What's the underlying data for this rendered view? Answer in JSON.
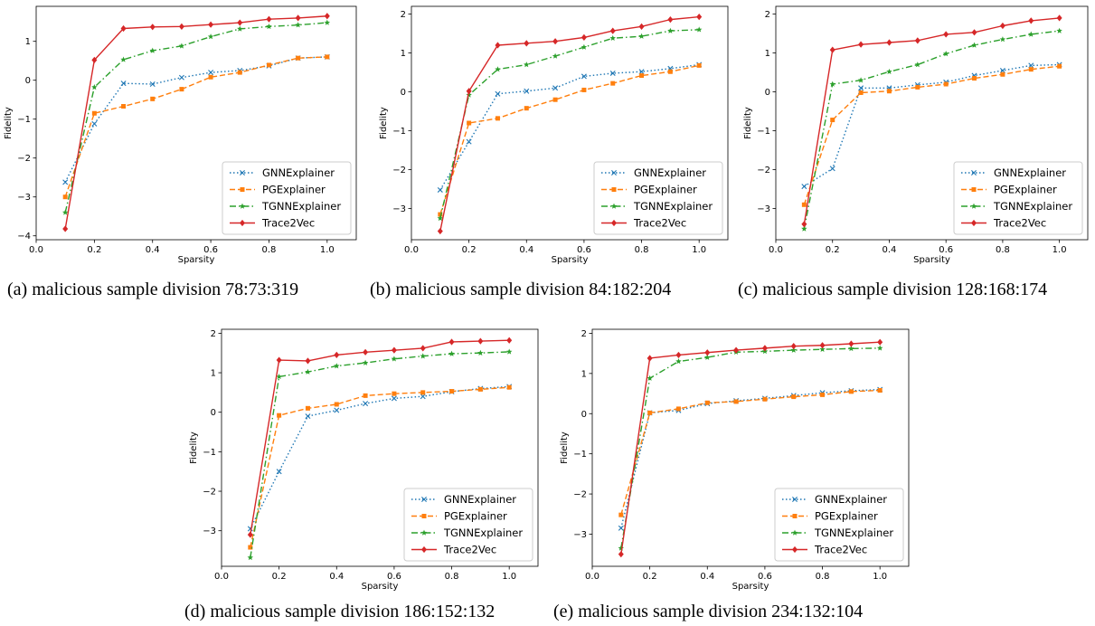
{
  "figure": {
    "colors": {
      "gnn": "#1f77b4",
      "pg": "#ff7f0e",
      "tgnn": "#2ca02c",
      "trace": "#d62728",
      "legend_border": "#cccccc"
    },
    "captions": [
      "(a) malicious sample division 78:73:319",
      "(b) malicious sample division 84:182:204",
      "(c) malicious sample division 128:168:174",
      "(d) malicious sample division 186:152:132",
      "(e) malicious sample division 234:132:104"
    ]
  },
  "chart_data": [
    {
      "type": "line",
      "xlabel": "Sparsity",
      "ylabel": "Fidelity",
      "xlim": [
        0.0,
        1.1
      ],
      "ylim": [
        -4.1,
        1.9
      ],
      "xticks": [
        "0.0",
        "0.2",
        "0.4",
        "0.6",
        "0.8",
        "1.0"
      ],
      "yticks": [
        "-4",
        "-3",
        "-2",
        "-1",
        "0",
        "1"
      ],
      "legend": "lower-right",
      "x": [
        0.1,
        0.2,
        0.3,
        0.4,
        0.5,
        0.6,
        0.7,
        0.8,
        0.9,
        1.0
      ],
      "series": [
        {
          "name": "GNNExplainer",
          "style": "dotted",
          "marker": "x",
          "values": [
            -2.62,
            -1.12,
            -0.08,
            -0.1,
            0.07,
            0.2,
            0.25,
            0.37,
            0.57,
            0.6
          ]
        },
        {
          "name": "PGExplainer",
          "style": "dashed",
          "marker": "square",
          "values": [
            -3.0,
            -0.85,
            -0.67,
            -0.48,
            -0.23,
            0.08,
            0.2,
            0.39,
            0.57,
            0.6
          ]
        },
        {
          "name": "TGNNExplainer",
          "style": "dashdot",
          "marker": "star",
          "values": [
            -3.4,
            -0.18,
            0.53,
            0.76,
            0.88,
            1.12,
            1.32,
            1.38,
            1.42,
            1.48
          ]
        },
        {
          "name": "Trace2Vec",
          "style": "solid",
          "marker": "diamond",
          "values": [
            -3.82,
            0.52,
            1.33,
            1.37,
            1.38,
            1.43,
            1.48,
            1.57,
            1.6,
            1.65
          ]
        }
      ]
    },
    {
      "type": "line",
      "xlabel": "Sparsity",
      "ylabel": "Fidelity",
      "xlim": [
        0.0,
        1.1
      ],
      "ylim": [
        -3.8,
        2.2
      ],
      "xticks": [
        "0.0",
        "0.2",
        "0.4",
        "0.6",
        "0.8",
        "1.0"
      ],
      "yticks": [
        "-3",
        "-2",
        "-1",
        "0",
        "1",
        "2"
      ],
      "legend": "lower-right",
      "x": [
        0.1,
        0.2,
        0.3,
        0.4,
        0.5,
        0.6,
        0.7,
        0.8,
        0.9,
        1.0
      ],
      "series": [
        {
          "name": "GNNExplainer",
          "style": "dotted",
          "marker": "x",
          "values": [
            -2.52,
            -1.28,
            -0.05,
            0.02,
            0.1,
            0.4,
            0.48,
            0.52,
            0.6,
            0.7
          ]
        },
        {
          "name": "PGExplainer",
          "style": "dashed",
          "marker": "square",
          "values": [
            -3.15,
            -0.8,
            -0.68,
            -0.42,
            -0.2,
            0.05,
            0.22,
            0.42,
            0.52,
            0.68
          ]
        },
        {
          "name": "TGNNExplainer",
          "style": "dashdot",
          "marker": "star",
          "values": [
            -3.25,
            -0.08,
            0.58,
            0.7,
            0.92,
            1.15,
            1.38,
            1.43,
            1.57,
            1.6
          ]
        },
        {
          "name": "Trace2Vec",
          "style": "solid",
          "marker": "diamond",
          "values": [
            -3.58,
            0.02,
            1.2,
            1.25,
            1.3,
            1.4,
            1.57,
            1.68,
            1.86,
            1.93
          ]
        }
      ]
    },
    {
      "type": "line",
      "xlabel": "Sparsity",
      "ylabel": "Fidelity",
      "xlim": [
        0.0,
        1.1
      ],
      "ylim": [
        -3.8,
        2.2
      ],
      "xticks": [
        "0.0",
        "0.2",
        "0.4",
        "0.6",
        "0.8",
        "1.0"
      ],
      "yticks": [
        "-3",
        "-2",
        "-1",
        "0",
        "1",
        "2"
      ],
      "legend": "lower-right",
      "x": [
        0.1,
        0.2,
        0.3,
        0.4,
        0.5,
        0.6,
        0.7,
        0.8,
        0.9,
        1.0
      ],
      "series": [
        {
          "name": "GNNExplainer",
          "style": "dotted",
          "marker": "x",
          "values": [
            -2.43,
            -1.97,
            0.1,
            0.1,
            0.18,
            0.25,
            0.42,
            0.55,
            0.68,
            0.7
          ]
        },
        {
          "name": "PGExplainer",
          "style": "dashed",
          "marker": "square",
          "values": [
            -2.9,
            -0.72,
            -0.02,
            0.02,
            0.12,
            0.2,
            0.35,
            0.45,
            0.58,
            0.66
          ]
        },
        {
          "name": "TGNNExplainer",
          "style": "dashdot",
          "marker": "star",
          "values": [
            -3.52,
            0.2,
            0.3,
            0.52,
            0.7,
            0.98,
            1.2,
            1.35,
            1.48,
            1.57
          ]
        },
        {
          "name": "Trace2Vec",
          "style": "solid",
          "marker": "diamond",
          "values": [
            -3.4,
            1.08,
            1.22,
            1.27,
            1.32,
            1.48,
            1.53,
            1.7,
            1.83,
            1.9
          ]
        }
      ]
    },
    {
      "type": "line",
      "xlabel": "Sparsity",
      "ylabel": "Fidelity",
      "xlim": [
        0.0,
        1.1
      ],
      "ylim": [
        -3.9,
        2.1
      ],
      "xticks": [
        "0.0",
        "0.2",
        "0.4",
        "0.6",
        "0.8",
        "1.0"
      ],
      "yticks": [
        "-3",
        "-2",
        "-1",
        "0",
        "1",
        "2"
      ],
      "legend": "lower-right",
      "x": [
        0.1,
        0.2,
        0.3,
        0.4,
        0.5,
        0.6,
        0.7,
        0.8,
        0.9,
        1.0
      ],
      "series": [
        {
          "name": "GNNExplainer",
          "style": "dotted",
          "marker": "x",
          "values": [
            -2.95,
            -1.5,
            -0.1,
            0.05,
            0.22,
            0.35,
            0.4,
            0.52,
            0.6,
            0.65
          ]
        },
        {
          "name": "PGExplainer",
          "style": "dashed",
          "marker": "square",
          "values": [
            -3.42,
            -0.08,
            0.1,
            0.2,
            0.42,
            0.47,
            0.5,
            0.53,
            0.58,
            0.63
          ]
        },
        {
          "name": "TGNNExplainer",
          "style": "dashdot",
          "marker": "star",
          "values": [
            -3.68,
            0.9,
            1.02,
            1.17,
            1.25,
            1.35,
            1.42,
            1.48,
            1.5,
            1.53
          ]
        },
        {
          "name": "Trace2Vec",
          "style": "solid",
          "marker": "diamond",
          "values": [
            -3.1,
            1.32,
            1.3,
            1.45,
            1.52,
            1.57,
            1.62,
            1.78,
            1.8,
            1.82
          ]
        }
      ]
    },
    {
      "type": "line",
      "xlabel": "Sparsity",
      "ylabel": "Fidelity",
      "xlim": [
        0.0,
        1.1
      ],
      "ylim": [
        -3.8,
        2.1
      ],
      "xticks": [
        "0.0",
        "0.2",
        "0.4",
        "0.6",
        "0.8",
        "1.0"
      ],
      "yticks": [
        "-3",
        "-2",
        "-1",
        "0",
        "1",
        "2"
      ],
      "legend": "lower-right",
      "x": [
        0.1,
        0.2,
        0.3,
        0.4,
        0.5,
        0.6,
        0.7,
        0.8,
        0.9,
        1.0
      ],
      "series": [
        {
          "name": "GNNExplainer",
          "style": "dotted",
          "marker": "x",
          "values": [
            -2.85,
            0.02,
            0.08,
            0.25,
            0.32,
            0.38,
            0.45,
            0.52,
            0.57,
            0.6
          ]
        },
        {
          "name": "PGExplainer",
          "style": "dashed",
          "marker": "square",
          "values": [
            -2.52,
            0.02,
            0.12,
            0.27,
            0.3,
            0.36,
            0.42,
            0.47,
            0.55,
            0.58
          ]
        },
        {
          "name": "TGNNExplainer",
          "style": "dashdot",
          "marker": "star",
          "values": [
            -3.35,
            0.88,
            1.3,
            1.4,
            1.53,
            1.55,
            1.58,
            1.6,
            1.62,
            1.63
          ]
        },
        {
          "name": "Trace2Vec",
          "style": "solid",
          "marker": "diamond",
          "values": [
            -3.5,
            1.38,
            1.46,
            1.52,
            1.58,
            1.63,
            1.68,
            1.7,
            1.74,
            1.78
          ]
        }
      ]
    }
  ]
}
